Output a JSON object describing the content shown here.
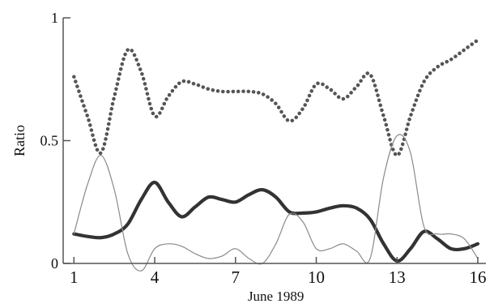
{
  "chart_data": {
    "type": "line",
    "title": "",
    "xlabel": "June 1989",
    "ylabel": "Ratio",
    "xlim": [
      0.6,
      16.3
    ],
    "ylim": [
      0,
      1
    ],
    "xticks": [
      1,
      4,
      7,
      10,
      13,
      16
    ],
    "xtick_labels": [
      "1",
      "4",
      "7",
      "10",
      "13",
      "16"
    ],
    "yticks": [
      0,
      0.5,
      1
    ],
    "ytick_labels": [
      "0",
      "0.5",
      "1"
    ],
    "grid": false,
    "legend": "none",
    "series": [
      {
        "style": "dotted",
        "color": "#555555",
        "x": [
          1,
          1.5,
          2,
          2.5,
          3,
          3.5,
          4,
          4.5,
          5,
          5.5,
          6,
          6.5,
          7,
          7.5,
          8,
          8.5,
          9,
          9.5,
          10,
          10.5,
          11,
          11.5,
          12,
          12.5,
          13,
          13.5,
          14,
          14.5,
          15,
          15.5,
          16
        ],
        "values": [
          0.76,
          0.6,
          0.45,
          0.68,
          0.87,
          0.78,
          0.6,
          0.68,
          0.74,
          0.73,
          0.71,
          0.7,
          0.7,
          0.7,
          0.69,
          0.65,
          0.58,
          0.63,
          0.73,
          0.71,
          0.67,
          0.72,
          0.77,
          0.6,
          0.44,
          0.6,
          0.74,
          0.8,
          0.83,
          0.87,
          0.91
        ]
      },
      {
        "style": "thick",
        "color": "#333333",
        "x": [
          1,
          1.5,
          2,
          2.5,
          3,
          3.5,
          4,
          4.5,
          5,
          5.5,
          6,
          6.5,
          7,
          7.5,
          8,
          8.5,
          9,
          9.5,
          10,
          10.5,
          11,
          11.5,
          12,
          12.5,
          13,
          13.5,
          14,
          14.5,
          15,
          15.5,
          16
        ],
        "values": [
          0.12,
          0.11,
          0.105,
          0.12,
          0.16,
          0.26,
          0.33,
          0.25,
          0.19,
          0.23,
          0.27,
          0.26,
          0.25,
          0.28,
          0.3,
          0.27,
          0.21,
          0.205,
          0.21,
          0.225,
          0.235,
          0.225,
          0.18,
          0.08,
          0.01,
          0.06,
          0.13,
          0.1,
          0.06,
          0.06,
          0.08
        ]
      },
      {
        "style": "thin",
        "color": "#8a8a8a",
        "x": [
          1,
          1.5,
          2,
          2.5,
          3,
          3.5,
          4,
          4.5,
          5,
          5.5,
          6,
          6.5,
          7,
          7.5,
          8,
          8.5,
          9,
          9.5,
          10,
          10.5,
          11,
          11.5,
          12,
          12.5,
          13,
          13.5,
          14,
          14.5,
          15,
          15.5,
          16
        ],
        "values": [
          0.12,
          0.32,
          0.44,
          0.3,
          0.04,
          -0.03,
          0.06,
          0.08,
          0.07,
          0.04,
          0.02,
          0.03,
          0.06,
          0.02,
          0.0,
          0.08,
          0.2,
          0.17,
          0.06,
          0.06,
          0.08,
          0.05,
          0.02,
          0.35,
          0.52,
          0.45,
          0.15,
          0.12,
          0.12,
          0.1,
          0.02
        ]
      }
    ]
  }
}
